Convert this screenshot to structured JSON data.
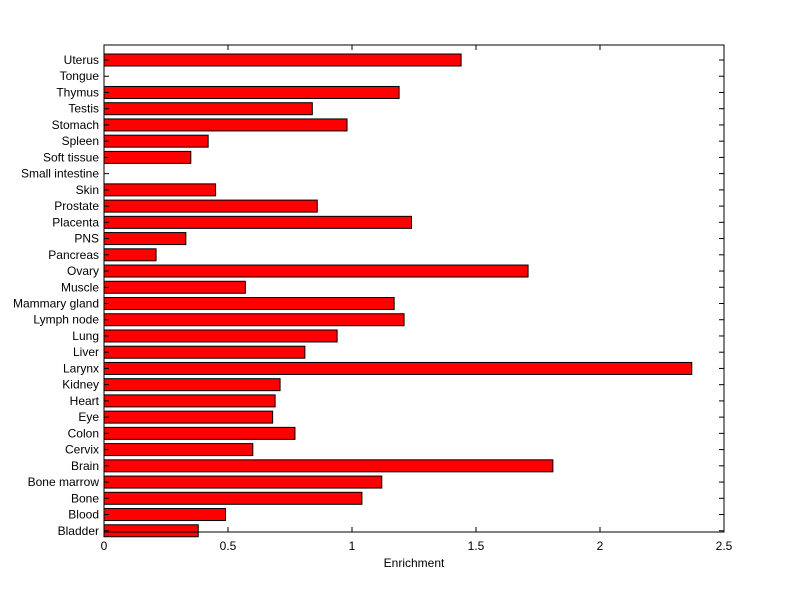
{
  "chart_data": {
    "type": "bar",
    "orientation": "horizontal",
    "title": "",
    "xlabel": "Enrichment",
    "ylabel": "",
    "xlim": [
      0,
      2.5
    ],
    "xticks": [
      0,
      0.5,
      1,
      1.5,
      2,
      2.5
    ],
    "xtick_labels": [
      "0",
      "0.5",
      "1",
      "1.5",
      "2",
      "2.5"
    ],
    "grid": false,
    "bar_color": "#ff0000",
    "edge_color": "#000000",
    "categories": [
      "Uterus",
      "Tongue",
      "Thymus",
      "Testis",
      "Stomach",
      "Spleen",
      "Soft tissue",
      "Small intestine",
      "Skin",
      "Prostate",
      "Placenta",
      "PNS",
      "Pancreas",
      "Ovary",
      "Muscle",
      "Mammary gland",
      "Lymph node",
      "Lung",
      "Liver",
      "Larynx",
      "Kidney",
      "Heart",
      "Eye",
      "Colon",
      "Cervix",
      "Brain",
      "Bone marrow",
      "Bone",
      "Blood",
      "Bladder"
    ],
    "values": [
      1.44,
      0,
      1.19,
      0.84,
      0.98,
      0.42,
      0.35,
      0,
      0.45,
      0.86,
      1.24,
      0.33,
      0.21,
      1.71,
      0.57,
      1.17,
      1.21,
      0.94,
      0.81,
      2.37,
      0.71,
      0.69,
      0.68,
      0.77,
      0.6,
      1.81,
      1.12,
      1.04,
      0.49,
      0.38
    ]
  }
}
